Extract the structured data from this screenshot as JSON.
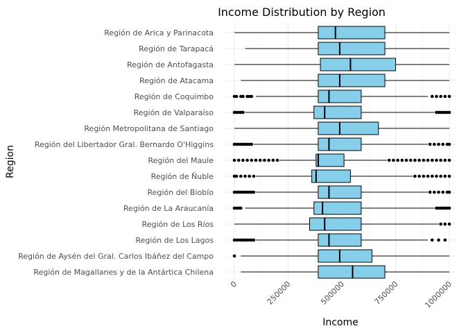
{
  "chart_data": {
    "type": "boxplot",
    "title": "Income Distribution by Region",
    "xlabel": "Income",
    "ylabel": "Region",
    "xlim": [
      0,
      1000000
    ],
    "x_ticks": [
      0,
      250000,
      500000,
      750000,
      1000000
    ],
    "x_tick_labels": [
      "0",
      "250000",
      "500000",
      "750000",
      "1000000"
    ],
    "grid": true,
    "box_color": "#87CEEB",
    "series": [
      {
        "category": "Región de Arica y Parinacota",
        "whisker_low": 0,
        "q1": 390000,
        "median": 470000,
        "q3": 700000,
        "whisker_high": 1000000,
        "outliers": []
      },
      {
        "category": "Región de Tarapacá",
        "whisker_low": 50000,
        "q1": 390000,
        "median": 490000,
        "q3": 700000,
        "whisker_high": 1000000,
        "outliers": []
      },
      {
        "category": "Región de Antofagasta",
        "whisker_low": 0,
        "q1": 400000,
        "median": 540000,
        "q3": 750000,
        "whisker_high": 1000000,
        "outliers": []
      },
      {
        "category": "Región de Atacama",
        "whisker_low": 30000,
        "q1": 390000,
        "median": 490000,
        "q3": 700000,
        "whisker_high": 1000000,
        "outliers": []
      },
      {
        "category": "Región de Coquimbo",
        "whisker_low": 100000,
        "q1": 390000,
        "median": 440000,
        "q3": 590000,
        "whisker_high": 900000,
        "outliers": [
          0,
          10000,
          30000,
          40000,
          60000,
          70000,
          80000,
          920000,
          940000,
          960000,
          980000,
          1000000
        ]
      },
      {
        "category": "Región de Valparaíso",
        "whisker_low": 50000,
        "q1": 370000,
        "median": 420000,
        "q3": 590000,
        "whisker_high": 930000,
        "outliers": [
          0,
          10000,
          20000,
          30000,
          40000,
          940000,
          950000,
          960000,
          970000,
          980000,
          990000,
          1000000
        ]
      },
      {
        "category": "Región Metropolitana de Santiago",
        "whisker_low": 0,
        "q1": 390000,
        "median": 490000,
        "q3": 670000,
        "whisker_high": 1000000,
        "outliers": []
      },
      {
        "category": "Región del Libertador Gral. Bernardo O'Higgins",
        "whisker_low": 90000,
        "q1": 390000,
        "median": 440000,
        "q3": 590000,
        "whisker_high": 900000,
        "outliers": [
          0,
          10000,
          20000,
          30000,
          40000,
          50000,
          60000,
          70000,
          80000,
          910000,
          930000,
          950000,
          970000,
          990000,
          1000000
        ]
      },
      {
        "category": "Región del Maule",
        "whisker_low": 210000,
        "q1": 380000,
        "median": 390000,
        "q3": 510000,
        "whisker_high": 710000,
        "outliers": [
          0,
          20000,
          40000,
          60000,
          80000,
          100000,
          120000,
          140000,
          160000,
          180000,
          200000,
          720000,
          740000,
          760000,
          780000,
          800000,
          820000,
          840000,
          860000,
          880000,
          900000,
          920000,
          940000,
          960000,
          980000,
          1000000
        ]
      },
      {
        "category": "Región de Ñuble",
        "whisker_low": 100000,
        "q1": 360000,
        "median": 380000,
        "q3": 540000,
        "whisker_high": 830000,
        "outliers": [
          0,
          10000,
          30000,
          50000,
          70000,
          90000,
          840000,
          860000,
          880000,
          900000,
          920000,
          940000,
          960000,
          980000,
          1000000
        ]
      },
      {
        "category": "Región del Biobío",
        "whisker_low": 100000,
        "q1": 390000,
        "median": 440000,
        "q3": 590000,
        "whisker_high": 900000,
        "outliers": [
          0,
          10000,
          20000,
          30000,
          40000,
          50000,
          60000,
          70000,
          80000,
          90000,
          910000,
          930000,
          950000,
          970000,
          990000,
          1000000
        ]
      },
      {
        "category": "Región de La Araucanía",
        "whisker_low": 50000,
        "q1": 370000,
        "median": 410000,
        "q3": 590000,
        "whisker_high": 930000,
        "outliers": [
          0,
          10000,
          20000,
          30000,
          940000,
          950000,
          960000,
          970000,
          980000,
          990000,
          1000000
        ]
      },
      {
        "category": "Región de Los Ríos",
        "whisker_low": 0,
        "q1": 350000,
        "median": 420000,
        "q3": 590000,
        "whisker_high": 950000,
        "outliers": [
          960000,
          980000,
          1000000
        ]
      },
      {
        "category": "Región de Los Lagos",
        "whisker_low": 100000,
        "q1": 390000,
        "median": 440000,
        "q3": 590000,
        "whisker_high": 900000,
        "outliers": [
          0,
          10000,
          20000,
          30000,
          40000,
          50000,
          60000,
          70000,
          80000,
          90000,
          920000,
          950000,
          980000
        ]
      },
      {
        "category": "Región de Aysén del Gral. Carlos Ibáñez del Campo",
        "whisker_low": 30000,
        "q1": 390000,
        "median": 490000,
        "q3": 640000,
        "whisker_high": 1000000,
        "outliers": [
          0
        ]
      },
      {
        "category": "Región de Magallanes y de la Antártica Chilena",
        "whisker_low": 30000,
        "q1": 390000,
        "median": 550000,
        "q3": 700000,
        "whisker_high": 1000000,
        "outliers": []
      }
    ]
  }
}
